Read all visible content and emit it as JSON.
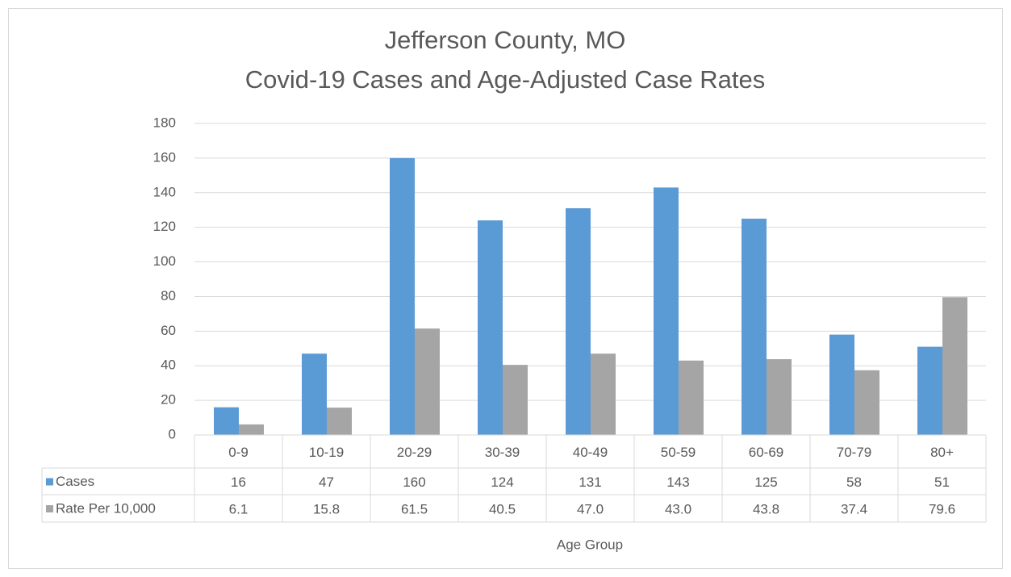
{
  "chart_data": {
    "type": "bar",
    "title": "Jefferson County, MO",
    "subtitle": "Covid-19 Cases and Age-Adjusted Case Rates",
    "x_label": "Age Group",
    "categories": [
      "0-9",
      "10-19",
      "20-29",
      "30-39",
      "40-49",
      "50-59",
      "60-69",
      "70-79",
      "80+"
    ],
    "series": [
      {
        "name": "Cases",
        "color": "#5b9bd5",
        "values": [
          16,
          47,
          160,
          124,
          131,
          143,
          125,
          58,
          51
        ]
      },
      {
        "name": "Rate Per 10,000",
        "color": "#a5a5a5",
        "values": [
          6.1,
          15.8,
          61.5,
          40.5,
          47.0,
          43.0,
          43.8,
          37.4,
          79.6
        ],
        "value_labels": [
          "6.1",
          "15.8",
          "61.5",
          "40.5",
          "47.0",
          "43.0",
          "43.8",
          "37.4",
          "79.6"
        ]
      }
    ],
    "ylim": [
      0,
      180
    ],
    "yticks": [
      0,
      20,
      40,
      60,
      80,
      100,
      120,
      140,
      160,
      180
    ],
    "grid": true,
    "legend": "table"
  }
}
